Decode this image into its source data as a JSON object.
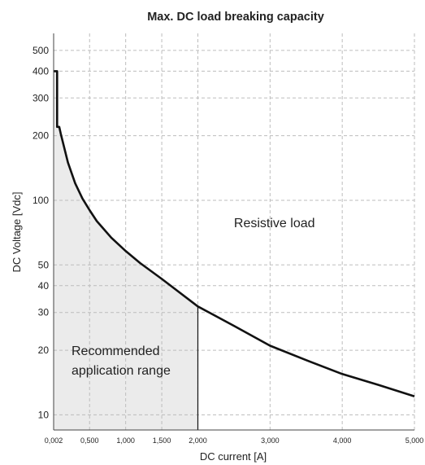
{
  "chart_data": {
    "type": "line",
    "title": "Max. DC load breaking capacity",
    "xlabel": "DC current [A]",
    "ylabel": "DC Voltage [Vdc]",
    "yscale": "log",
    "xlim": [
      0.002,
      5.0
    ],
    "ylim": [
      8.5,
      600
    ],
    "grid": true,
    "x_tick_labels": [
      "0,002",
      "0,500",
      "1,000",
      "1,500",
      "2,000",
      "3,000",
      "4,000",
      "5,000"
    ],
    "y_tick_labels": [
      "500",
      "400",
      "300",
      "200",
      "100",
      "50",
      "40",
      "30",
      "20",
      "10"
    ],
    "y_tick_values": [
      500,
      400,
      300,
      200,
      100,
      50,
      40,
      30,
      20,
      10
    ],
    "series": [
      {
        "x": [
          0.002,
          0.05,
          0.05,
          0.08,
          0.08,
          0.1,
          0.2,
          0.3,
          0.4,
          0.5,
          0.6,
          0.8,
          1.0,
          1.2,
          1.5,
          2.0,
          2.5,
          3.0,
          3.5,
          4.0,
          4.5,
          5.0
        ],
        "y": [
          400,
          400,
          220,
          220,
          220,
          205,
          150,
          120,
          102,
          90,
          80,
          67,
          58,
          51,
          43,
          32,
          26,
          21,
          18,
          15.5,
          13.8,
          12.2
        ]
      }
    ],
    "shaded_region": {
      "x_max": 2.0,
      "fill": "#ebebeb"
    },
    "annotations": [
      {
        "text": "Resistive load",
        "x": 2.5,
        "y": 75
      },
      {
        "lines": [
          "Recommended",
          "application range"
        ],
        "x": 0.6,
        "y": 19
      }
    ]
  }
}
